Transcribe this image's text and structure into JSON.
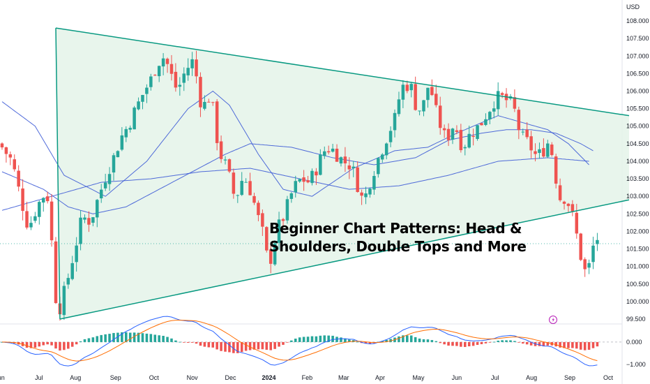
{
  "overlay": {
    "headline": "Beginner Chart Patterns: Head & Shoulders, Double Tops and More"
  },
  "colors": {
    "up": "#26a69a",
    "down": "#ef5350",
    "triangle": "#089981",
    "triangle_fill": "#e6f4ea",
    "ma": "#3d5bd6",
    "macd": "#2962ff",
    "signal": "#ff6d00"
  },
  "chart_data": [
    {
      "type": "candlestick",
      "currency": "USD",
      "x_ticks": [
        "Jun",
        "Jul",
        "Aug",
        "Sep",
        "Oct",
        "Nov",
        "Dec",
        "2024",
        "Feb",
        "Mar",
        "Apr",
        "May",
        "Jun",
        "Jul",
        "Aug",
        "Sep",
        "Oct"
      ],
      "y_ticks": [
        "108.000",
        "107.500",
        "107.000",
        "106.500",
        "106.000",
        "105.500",
        "105.000",
        "104.500",
        "104.000",
        "103.500",
        "103.000",
        "102.500",
        "102.000",
        "101.500",
        "101.000",
        "100.500",
        "100.000",
        "99.500"
      ],
      "ylim": [
        99.4,
        108.2
      ],
      "price_path": [
        [
          0,
          104.5
        ],
        [
          3,
          104.0
        ],
        [
          5,
          103.0
        ],
        [
          7,
          102.1
        ],
        [
          9,
          102.7
        ],
        [
          11,
          103.1
        ],
        [
          12,
          102.9
        ],
        [
          13,
          100.9
        ],
        [
          14,
          99.6
        ],
        [
          16,
          100.4
        ],
        [
          18,
          101.4
        ],
        [
          20,
          102.4
        ],
        [
          22,
          102.3
        ],
        [
          24,
          103.0
        ],
        [
          26,
          103.7
        ],
        [
          28,
          104.2
        ],
        [
          29,
          104.6
        ],
        [
          31,
          105.0
        ],
        [
          33,
          105.5
        ],
        [
          35,
          106.0
        ],
        [
          37,
          106.4
        ],
        [
          38,
          106.8
        ],
        [
          40,
          107.0
        ],
        [
          41,
          106.6
        ],
        [
          43,
          106.0
        ],
        [
          45,
          106.6
        ],
        [
          47,
          106.9
        ],
        [
          48,
          106.1
        ],
        [
          49,
          105.5
        ],
        [
          51,
          105.9
        ],
        [
          52,
          105.2
        ],
        [
          53,
          104.3
        ],
        [
          55,
          103.8
        ],
        [
          57,
          102.9
        ],
        [
          59,
          103.6
        ],
        [
          61,
          103.1
        ],
        [
          62,
          102.6
        ],
        [
          64,
          101.8
        ],
        [
          65,
          101.0
        ],
        [
          66,
          101.4
        ],
        [
          67,
          102.0
        ],
        [
          69,
          102.5
        ],
        [
          71,
          103.2
        ],
        [
          73,
          103.5
        ],
        [
          75,
          103.4
        ],
        [
          77,
          103.9
        ],
        [
          79,
          104.4
        ],
        [
          81,
          104.3
        ],
        [
          83,
          104.0
        ],
        [
          85,
          103.9
        ],
        [
          87,
          103.2
        ],
        [
          88,
          102.8
        ],
        [
          90,
          103.6
        ],
        [
          92,
          104.2
        ],
        [
          94,
          104.8
        ],
        [
          96,
          105.3
        ],
        [
          97,
          106.1
        ],
        [
          99,
          106.2
        ],
        [
          100,
          106.0
        ],
        [
          101,
          105.4
        ],
        [
          103,
          105.7
        ],
        [
          104,
          106.4
        ],
        [
          105,
          105.6
        ],
        [
          107,
          104.9
        ],
        [
          108,
          104.6
        ],
        [
          110,
          105.1
        ],
        [
          112,
          104.4
        ],
        [
          114,
          104.8
        ],
        [
          116,
          105.0
        ],
        [
          118,
          105.4
        ],
        [
          120,
          105.8
        ],
        [
          122,
          105.8
        ],
        [
          124,
          105.6
        ],
        [
          125,
          105.3
        ],
        [
          126,
          104.7
        ],
        [
          128,
          104.5
        ],
        [
          130,
          104.1
        ],
        [
          132,
          104.4
        ],
        [
          133,
          104.6
        ],
        [
          134,
          104.0
        ],
        [
          135,
          103.2
        ],
        [
          136,
          102.8
        ],
        [
          137,
          103.1
        ],
        [
          138,
          102.6
        ],
        [
          139,
          102.3
        ],
        [
          140,
          101.6
        ],
        [
          141,
          101.1
        ],
        [
          142,
          100.7
        ],
        [
          143,
          101.2
        ],
        [
          144,
          101.8
        ]
      ],
      "moving_averages": [
        {
          "points": [
            [
              0,
              105.7
            ],
            [
              8,
              105.0
            ],
            [
              15,
              103.6
            ],
            [
              25,
              103.0
            ],
            [
              35,
              104.0
            ],
            [
              45,
              105.5
            ],
            [
              51,
              106.0
            ],
            [
              55,
              105.6
            ],
            [
              62,
              104.2
            ],
            [
              68,
              103.2
            ],
            [
              75,
              103.0
            ],
            [
              85,
              103.8
            ],
            [
              95,
              104.3
            ],
            [
              103,
              104.4
            ],
            [
              110,
              104.8
            ],
            [
              116,
              105.1
            ],
            [
              120,
              105.3
            ],
            [
              126,
              105.1
            ],
            [
              132,
              104.9
            ],
            [
              137,
              104.5
            ],
            [
              142,
              103.9
            ]
          ]
        },
        {
          "points": [
            [
              0,
              103.7
            ],
            [
              10,
              103.2
            ],
            [
              16,
              102.7
            ],
            [
              22,
              102.5
            ],
            [
              30,
              102.7
            ],
            [
              38,
              103.2
            ],
            [
              46,
              103.7
            ],
            [
              54,
              104.2
            ],
            [
              60,
              104.5
            ],
            [
              70,
              104.4
            ],
            [
              80,
              104.1
            ],
            [
              90,
              103.9
            ],
            [
              100,
              104.1
            ],
            [
              108,
              104.6
            ],
            [
              116,
              104.8
            ],
            [
              122,
              104.9
            ],
            [
              128,
              104.9
            ],
            [
              134,
              104.8
            ],
            [
              140,
              104.5
            ],
            [
              143,
              104.3
            ]
          ]
        },
        {
          "points": [
            [
              0,
              102.6
            ],
            [
              12,
              103.0
            ],
            [
              24,
              103.4
            ],
            [
              36,
              103.5
            ],
            [
              48,
              103.7
            ],
            [
              60,
              103.8
            ],
            [
              72,
              103.5
            ],
            [
              84,
              103.2
            ],
            [
              96,
              103.3
            ],
            [
              108,
              103.6
            ],
            [
              120,
              104.0
            ],
            [
              132,
              104.1
            ],
            [
              142,
              104.0
            ]
          ]
        }
      ],
      "triangle_pattern": {
        "upper_line": [
          [
            13,
            107.8
          ],
          [
            150,
            105.3
          ]
        ],
        "lower_line": [
          [
            14,
            99.5
          ],
          [
            150,
            102.9
          ]
        ]
      },
      "current_price_line": 101.65
    },
    {
      "type": "line",
      "indicator": "MACD",
      "y_ticks": [
        "0.000",
        "−1.000"
      ],
      "ylim": [
        -1.35,
        0.75
      ]
    }
  ]
}
